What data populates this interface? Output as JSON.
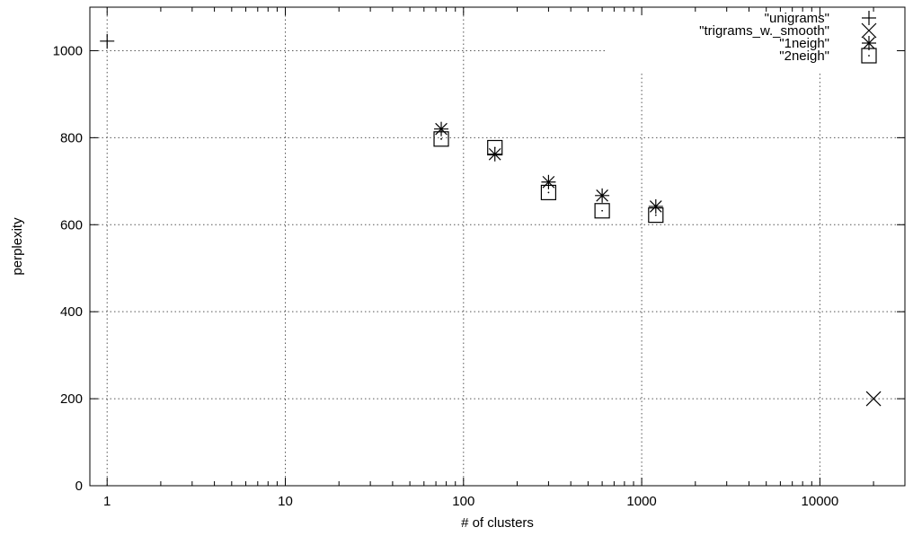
{
  "chart_data": {
    "type": "scatter",
    "xlabel": "# of clusters",
    "ylabel": "perplexity",
    "xscale": "log",
    "xlim": [
      0.8,
      30000
    ],
    "ylim": [
      0,
      1100
    ],
    "xticks": [
      1,
      10,
      100,
      1000,
      10000
    ],
    "yticks": [
      0,
      200,
      400,
      600,
      800,
      1000
    ],
    "grid": true,
    "legend_position": "top-right",
    "series": [
      {
        "name": "\"unigrams\"",
        "marker": "plus",
        "points": [
          [
            1,
            1022
          ]
        ]
      },
      {
        "name": "\"trigrams_w._smooth\"",
        "marker": "cross",
        "points": [
          [
            20000,
            200
          ]
        ]
      },
      {
        "name": "\"1neigh\"",
        "marker": "star",
        "points": [
          [
            75,
            820
          ],
          [
            150,
            762
          ],
          [
            300,
            698
          ],
          [
            600,
            667
          ],
          [
            1200,
            642
          ]
        ]
      },
      {
        "name": "\"2neigh\"",
        "marker": "square",
        "points": [
          [
            75,
            797
          ],
          [
            150,
            777
          ],
          [
            300,
            674
          ],
          [
            600,
            632
          ],
          [
            1200,
            622
          ]
        ]
      }
    ]
  }
}
